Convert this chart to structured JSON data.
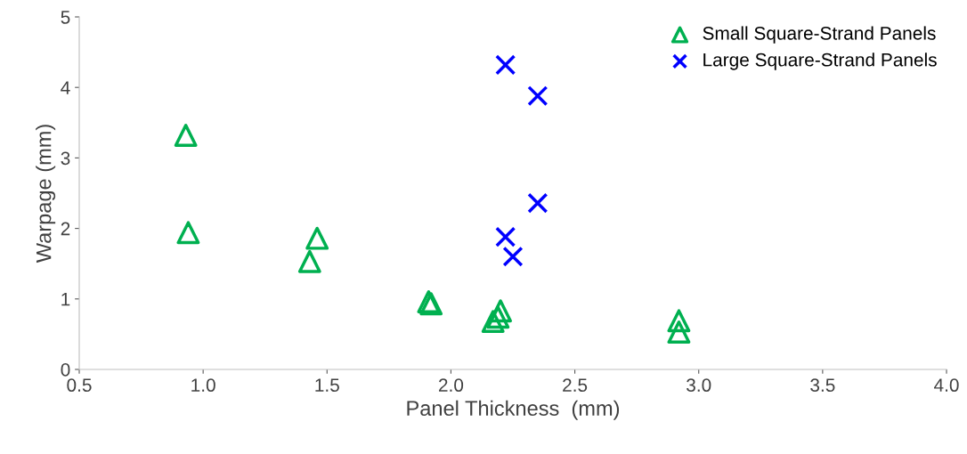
{
  "chart_data": {
    "type": "scatter",
    "xlabel": "Panel Thickness  (mm)",
    "ylabel": "Warpage (mm)",
    "xlim": [
      0.5,
      4.0
    ],
    "xticks": [
      {
        "value": 0.5,
        "label": "0.5"
      },
      {
        "value": 1.0,
        "label": "1.0"
      },
      {
        "value": 1.5,
        "label": "1.5"
      },
      {
        "value": 2.0,
        "label": "2.0"
      },
      {
        "value": 2.5,
        "label": "2.5"
      },
      {
        "value": 3.0,
        "label": "3.0"
      },
      {
        "value": 3.5,
        "label": "3.5"
      },
      {
        "value": 4.0,
        "label": "4.0"
      }
    ],
    "ylim": [
      0,
      5
    ],
    "yticks": [
      0,
      1,
      2,
      3,
      4,
      5
    ],
    "grid": false,
    "legend": "top right",
    "series": [
      {
        "name": "Small Square-Strand Panels",
        "color": "#00b050",
        "marker": "triangle",
        "x": [
          0.93,
          0.94,
          1.46,
          1.43,
          1.91,
          1.92,
          2.2,
          2.19,
          2.17,
          2.92,
          2.92
        ],
        "values": [
          3.32,
          1.94,
          1.86,
          1.53,
          0.96,
          0.93,
          0.83,
          0.74,
          0.68,
          0.69,
          0.53
        ]
      },
      {
        "name": "Large Square-Strand Panels",
        "color": "#0000ff",
        "marker": "cross",
        "x": [
          2.22,
          2.35,
          2.35,
          2.22,
          2.25
        ],
        "values": [
          4.32,
          3.88,
          2.36,
          1.88,
          1.6
        ]
      }
    ]
  }
}
